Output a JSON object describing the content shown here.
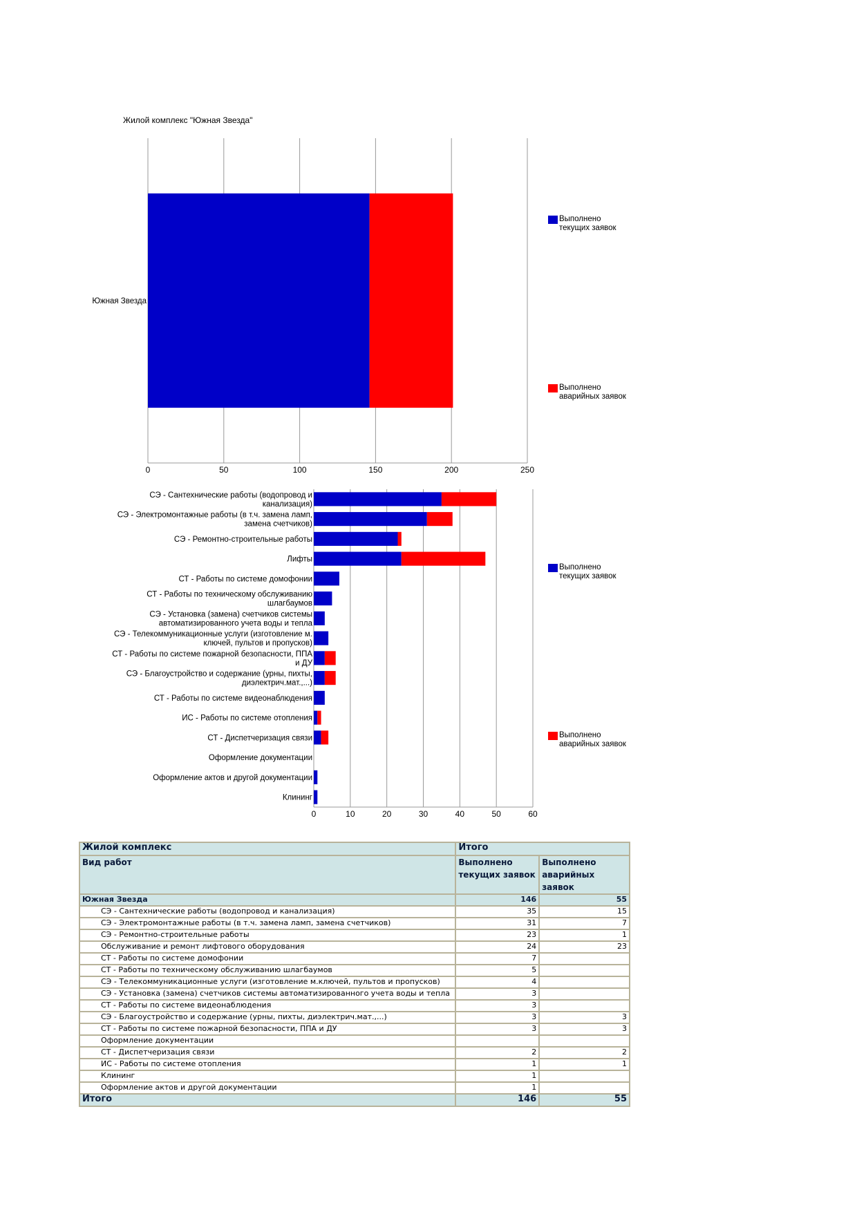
{
  "heading": "Жилой комплекс  \"Южная Звезда\"",
  "colors": {
    "current": "#0000c8",
    "emergency": "#ff0000",
    "grid": "#999999"
  },
  "chart_data": [
    {
      "type": "bar",
      "orientation": "horizontal",
      "stacked": true,
      "categories": [
        "Южная Звезда"
      ],
      "series": [
        {
          "name": "Выполнено текущих заявок",
          "values": [
            146
          ]
        },
        {
          "name": "Выполнено аварийных заявок",
          "values": [
            55
          ]
        }
      ],
      "xlim": [
        0,
        250
      ],
      "xticks": [
        0,
        50,
        100,
        150,
        200,
        250
      ],
      "grid": true,
      "legend": "right",
      "legend_items": [
        [
          "Выполнено",
          "текущих заявок"
        ],
        [
          "Выполнено",
          "аварийных заявок"
        ]
      ]
    },
    {
      "type": "bar",
      "orientation": "horizontal",
      "stacked": true,
      "categories": [
        [
          "СЭ - Сантехнические работы (водопровод и",
          "канализация)"
        ],
        [
          "СЭ - Электромонтажные работы (в т.ч. замена ламп,",
          "замена счетчиков)"
        ],
        [
          "СЭ - Ремонтно-строительные работы"
        ],
        [
          "Лифты"
        ],
        [
          "СТ - Работы по системе домофонии"
        ],
        [
          "СТ - Работы по техническому обслуживанию",
          "шлагбаумов"
        ],
        [
          "СЭ - Установка (замена) счетчиков системы",
          "автоматизированного учета воды и тепла"
        ],
        [
          "СЭ - Телекоммуникационные услуги (изготовление м.",
          "ключей, пультов и пропусков)"
        ],
        [
          "СТ - Работы по системе пожарной безопасности, ППА",
          "и ДУ"
        ],
        [
          "СЭ - Благоустройство и содержание (урны, пихты,",
          "диэлектрич.мат.,...)"
        ],
        [
          "СТ - Работы по системе видеонаблюдения"
        ],
        [
          "ИС - Работы по системе отопления"
        ],
        [
          "СТ - Диспетчеризация связи"
        ],
        [
          "Оформление документации"
        ],
        [
          "Оформление актов и другой документации"
        ],
        [
          "Клининг"
        ]
      ],
      "series": [
        {
          "name": "Выполнено текущих заявок",
          "values": [
            35,
            31,
            23,
            24,
            7,
            5,
            3,
            4,
            3,
            3,
            3,
            1,
            2,
            0,
            1,
            1
          ]
        },
        {
          "name": "Выполнено аварийных заявок",
          "values": [
            15,
            7,
            1,
            23,
            0,
            0,
            0,
            0,
            3,
            3,
            0,
            1,
            2,
            0,
            0,
            0
          ]
        }
      ],
      "xlim": [
        0,
        60
      ],
      "xticks": [
        0,
        10,
        20,
        30,
        40,
        50,
        60
      ],
      "grid": true,
      "legend": "right",
      "legend_items": [
        [
          "Выполнено",
          "текущих заявок"
        ],
        [
          "Выполнено",
          "аварийных заявок"
        ]
      ]
    }
  ],
  "table": {
    "h1": [
      "Жилой комплекс",
      "Итого"
    ],
    "h2": [
      "Вид работ",
      "Выполнено текущих заявок",
      "Выполнено аварийных заявок"
    ],
    "group": {
      "name": "Южная Звезда",
      "current": "146",
      "emergency": "55"
    },
    "rows": [
      [
        "СЭ - Сантехнические работы (водопровод и канализация)",
        "35",
        "15"
      ],
      [
        "СЭ - Электромонтажные работы (в т.ч. замена ламп, замена счетчиков)",
        "31",
        "7"
      ],
      [
        "СЭ - Ремонтно-строительные работы",
        "23",
        "1"
      ],
      [
        "Обслуживание и ремонт лифтового оборудования",
        "24",
        "23"
      ],
      [
        "СТ - Работы по системе домофонии",
        "7",
        ""
      ],
      [
        "СТ - Работы по техническому обслуживанию шлагбаумов",
        "5",
        ""
      ],
      [
        "СЭ - Телекоммуникационные услуги (изготовление м.ключей, пультов и пропусков)",
        "4",
        ""
      ],
      [
        "СЭ - Установка (замена) счетчиков системы автоматизированного учета воды и тепла",
        "3",
        ""
      ],
      [
        "СТ - Работы по системе видеонаблюдения",
        "3",
        ""
      ],
      [
        "СЭ - Благоустройство и содержание (урны, пихты, диэлектрич.мат.,...)",
        "3",
        "3"
      ],
      [
        "СТ - Работы по системе пожарной безопасности, ППА и ДУ",
        "3",
        "3"
      ],
      [
        "Оформление документации",
        "",
        ""
      ],
      [
        "СТ - Диспетчеризация связи",
        "2",
        "2"
      ],
      [
        "ИС - Работы по системе отопления",
        "1",
        "1"
      ],
      [
        "Клининг",
        "1",
        ""
      ],
      [
        "Оформление актов и другой документации",
        "1",
        ""
      ]
    ],
    "total": {
      "label": "Итого",
      "current": "146",
      "emergency": "55"
    }
  }
}
